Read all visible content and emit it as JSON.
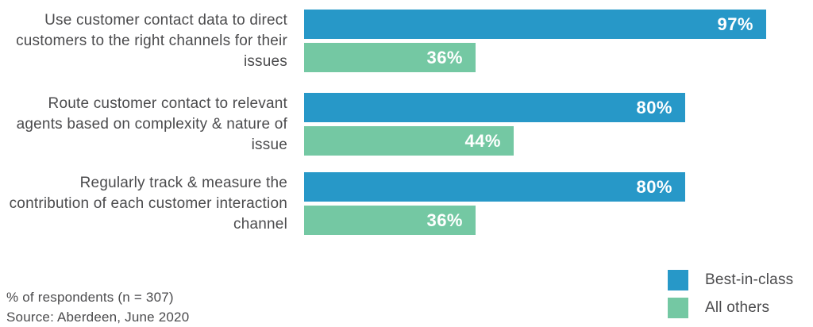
{
  "chart_data": {
    "type": "bar",
    "orientation": "horizontal",
    "title": "",
    "categories": [
      "Use customer contact data to direct customers to the right channels for their issues",
      "Route customer contact to relevant agents based on complexity & nature of issue",
      "Regularly track & measure the contribution of each customer interaction channel"
    ],
    "series": [
      {
        "name": "Best-in-class",
        "color": "#2798C8",
        "values": [
          97,
          80,
          80
        ]
      },
      {
        "name": "All others",
        "color": "#74C8A3",
        "values": [
          36,
          44,
          36
        ]
      }
    ],
    "value_suffix": "%",
    "xlim": [
      0,
      100
    ],
    "grid": false,
    "legend_position": "bottom-right",
    "footnote": "% of respondents (n = 307)",
    "source": "Source: Aberdeen, June 2020"
  },
  "colors": {
    "best_in_class": "#2798C8",
    "all_others": "#74C8A3",
    "text": "#4b4b4d",
    "value_label": "#ffffff",
    "background": "#ffffff"
  },
  "legend": {
    "items": [
      {
        "label": "Best-in-class",
        "color": "#2798C8"
      },
      {
        "label": "All others",
        "color": "#74C8A3"
      }
    ]
  },
  "footer": {
    "note": "% of respondents (n = 307)",
    "source": "Source: Aberdeen, June 2020"
  }
}
